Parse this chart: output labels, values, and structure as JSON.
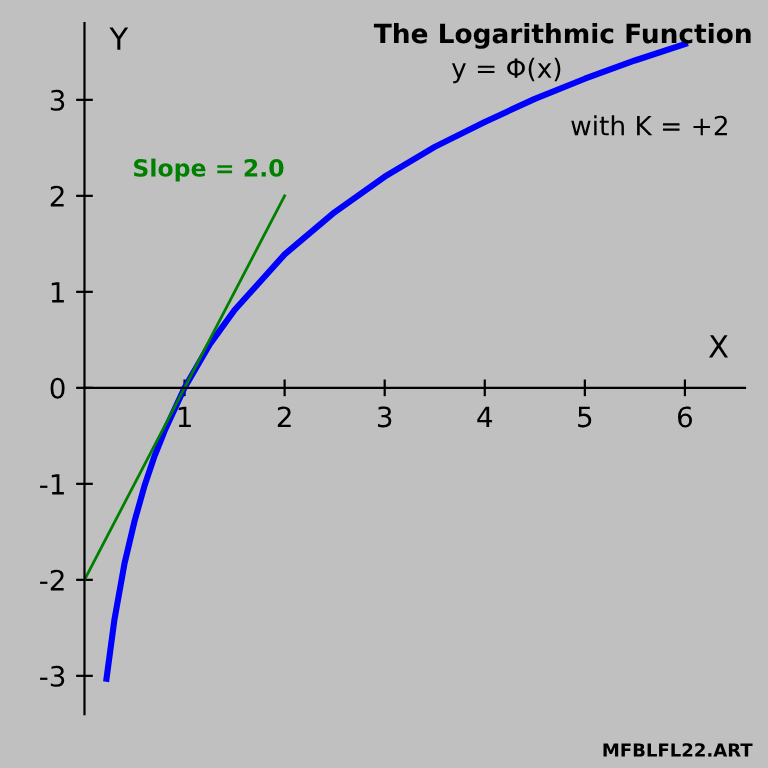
{
  "chart_data": {
    "type": "line",
    "title": "The Logarithmic Function",
    "subtitle": "y = Φ(x)",
    "xlabel": "X",
    "ylabel": "Y",
    "series": [
      {
        "color": "#0000ff",
        "x": [
          0.22,
          0.3,
          0.4,
          0.5,
          0.6,
          0.7,
          0.8,
          1,
          1.25,
          1.5,
          2,
          2.5,
          3,
          3.5,
          4,
          4.5,
          5,
          5.5,
          6
        ],
        "values": [
          -3.03,
          -2.41,
          -1.83,
          -1.39,
          -1.02,
          -0.71,
          -0.45,
          0,
          0.45,
          0.81,
          1.39,
          1.83,
          2.2,
          2.51,
          2.77,
          3.01,
          3.22,
          3.41,
          3.58
        ]
      },
      {
        "color": "#008000",
        "x": [
          0,
          2
        ],
        "values": [
          -2,
          2
        ]
      }
    ],
    "annotations": [
      "with K = +2",
      {
        "text": "Slope = 2.0",
        "x": 2,
        "y": 2
      },
      "MFBLFL22.ART"
    ],
    "xlim": [
      0,
      6.6
    ],
    "ylim": [
      -3.4,
      3.8
    ],
    "xticks": [
      1,
      2,
      3,
      4,
      5,
      6
    ],
    "yticks": [
      -3,
      -2,
      -1,
      0,
      1,
      2,
      3
    ],
    "grid": false,
    "legend": false,
    "marker": "none",
    "line_style": "solid"
  }
}
